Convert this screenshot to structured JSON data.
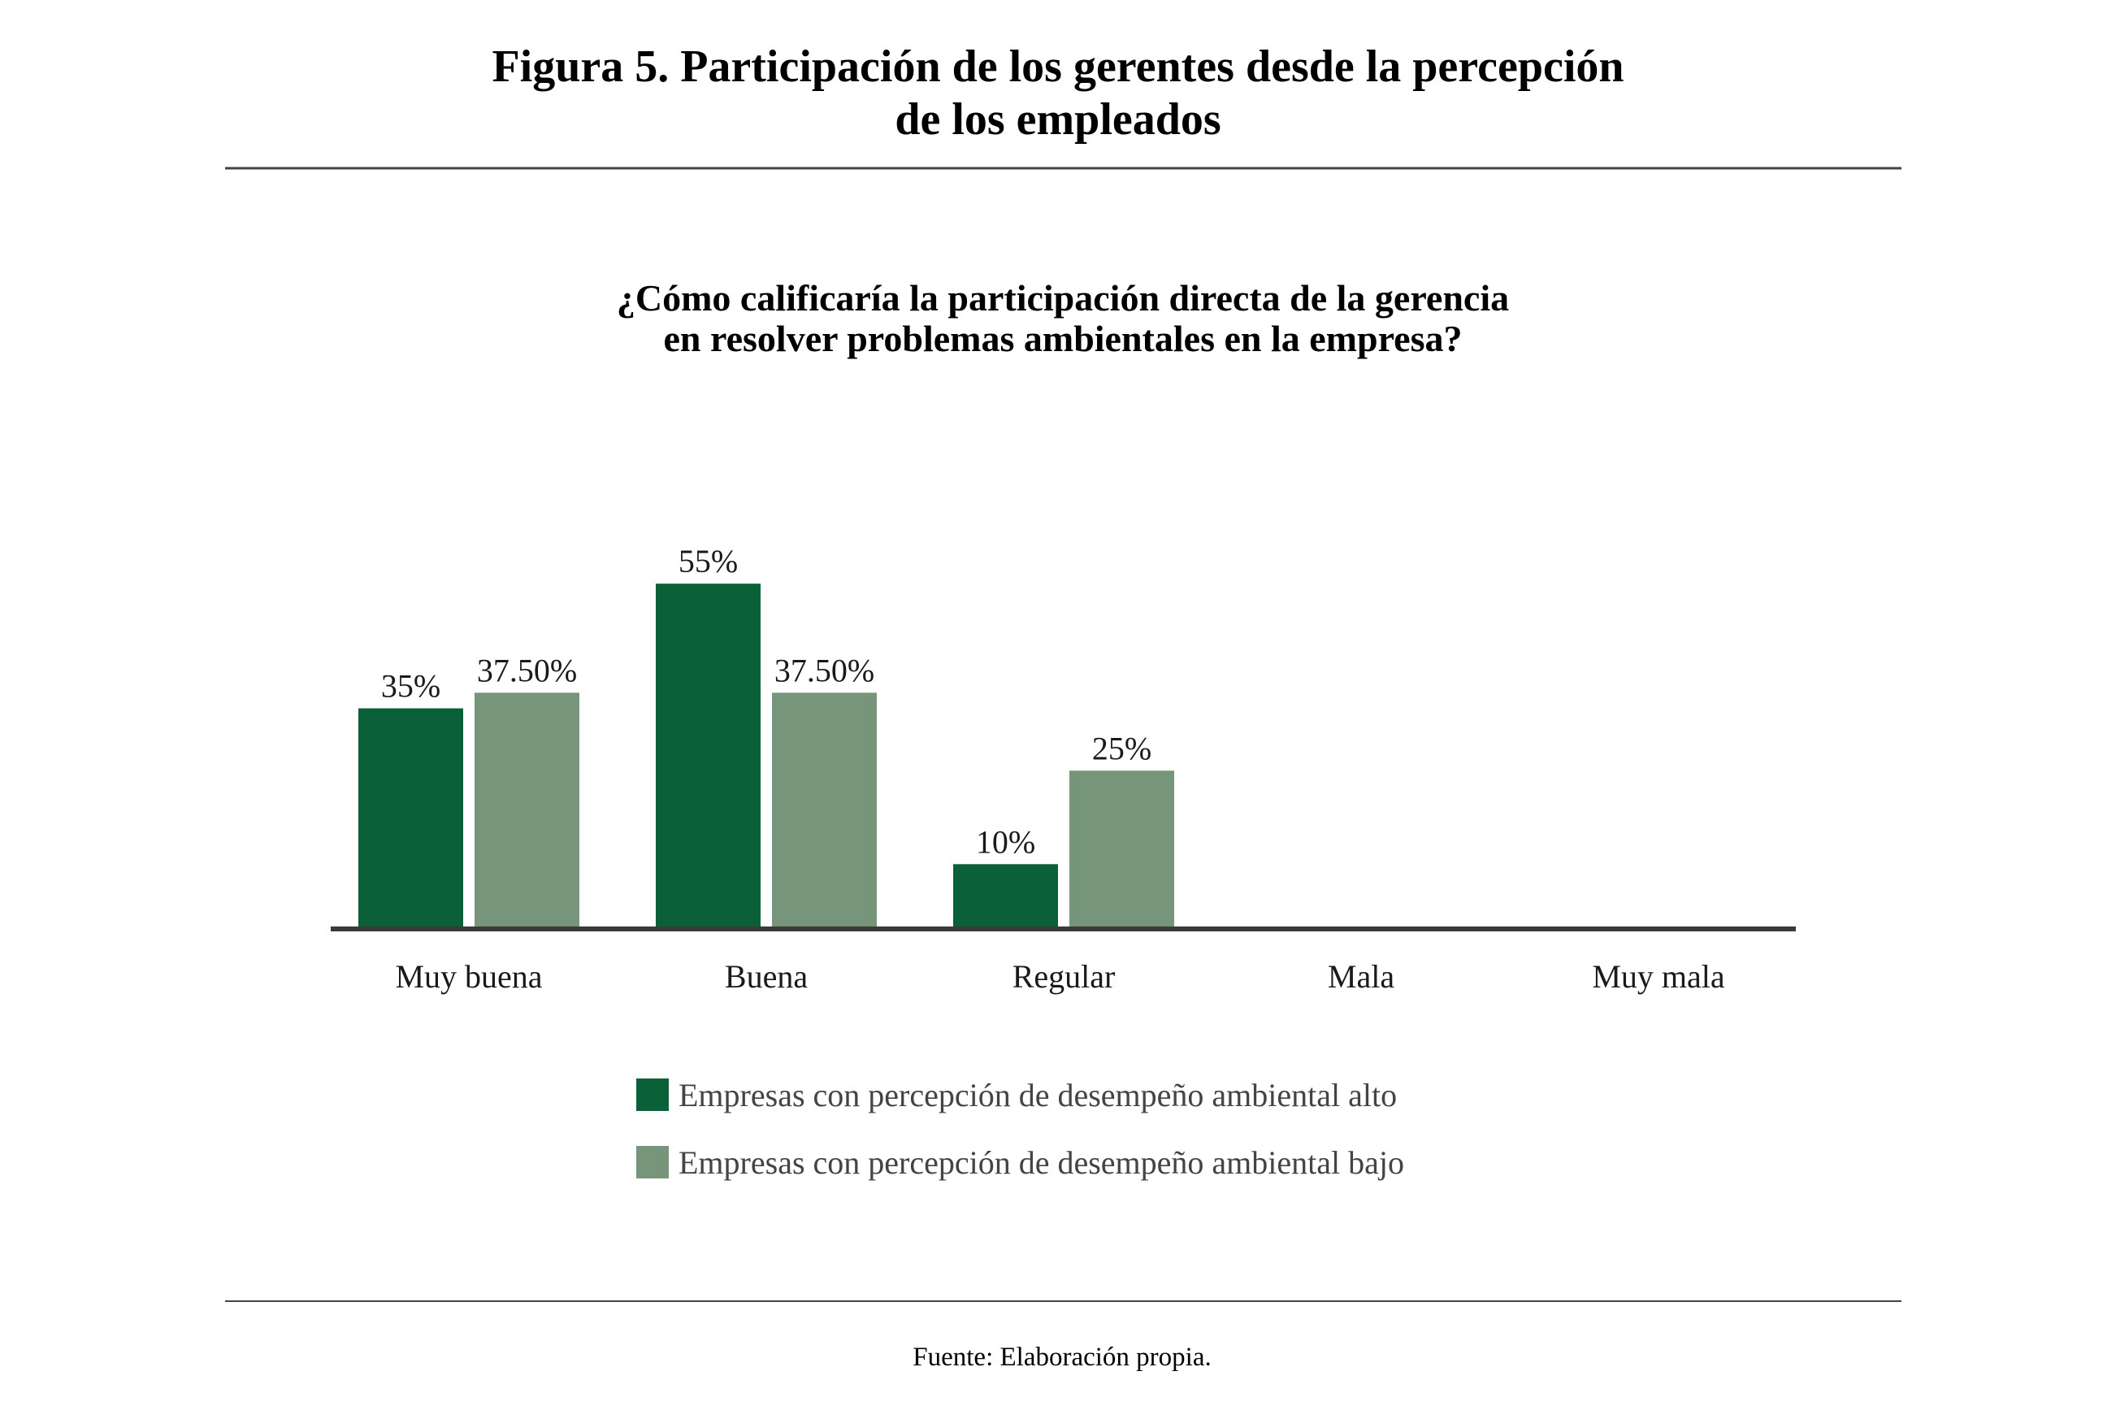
{
  "figure": {
    "title_line1": "Figura 5. Participación de los gerentes desde la percepción",
    "title_line2": "de los empleados",
    "source": "Fuente: Elaboración propia."
  },
  "chart_data": {
    "type": "bar",
    "title_line1": "¿Cómo calificaría la participación directa de la gerencia",
    "title_line2": "en resolver problemas ambientales en la empresa?",
    "categories": [
      "Muy buena",
      "Buena",
      "Regular",
      "Mala",
      "Muy mala"
    ],
    "series": [
      {
        "name": "Empresas con percepción de desempeño ambiental alto",
        "color": "#0b6137",
        "values": [
          35,
          55,
          10,
          null,
          null
        ],
        "labels": [
          "35%",
          "55%",
          "10%",
          "",
          ""
        ]
      },
      {
        "name": "Empresas con percepción de desempeño ambiental bajo",
        "color": "#76957a",
        "values": [
          37.5,
          37.5,
          25,
          null,
          null
        ],
        "labels": [
          "37.50%",
          "37.50%",
          "25%",
          "",
          ""
        ]
      }
    ],
    "ylim": [
      0,
      60
    ],
    "grid": false,
    "legend_position": "bottom"
  }
}
